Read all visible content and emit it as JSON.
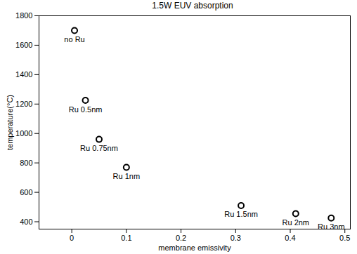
{
  "chart_data": {
    "type": "scatter",
    "title": "1.5W EUV absorption",
    "x_label": "membrane emissivity",
    "y_label": "temperature(°C)",
    "x": [
      0.005,
      0.025,
      0.05,
      0.1,
      0.31,
      0.41,
      0.475
    ],
    "values": [
      1700,
      1225,
      960,
      770,
      510,
      455,
      425
    ],
    "point_labels": [
      "no Ru",
      "Ru 0.5nm",
      "Ru 0.75nm",
      "Ru 1nm",
      "Ru 1.5nm",
      "Ru 2nm",
      "Ru 3nm"
    ],
    "color": "#000000",
    "marker": "circle",
    "xlim": [
      -0.06,
      0.51
    ],
    "xticks": [
      0,
      0.1,
      0.2,
      0.3,
      0.4,
      0.5
    ],
    "ylim": [
      350,
      1800
    ],
    "yticks": [
      400,
      600,
      800,
      1000,
      1200,
      1400,
      1600,
      1800
    ],
    "grid": false
  }
}
